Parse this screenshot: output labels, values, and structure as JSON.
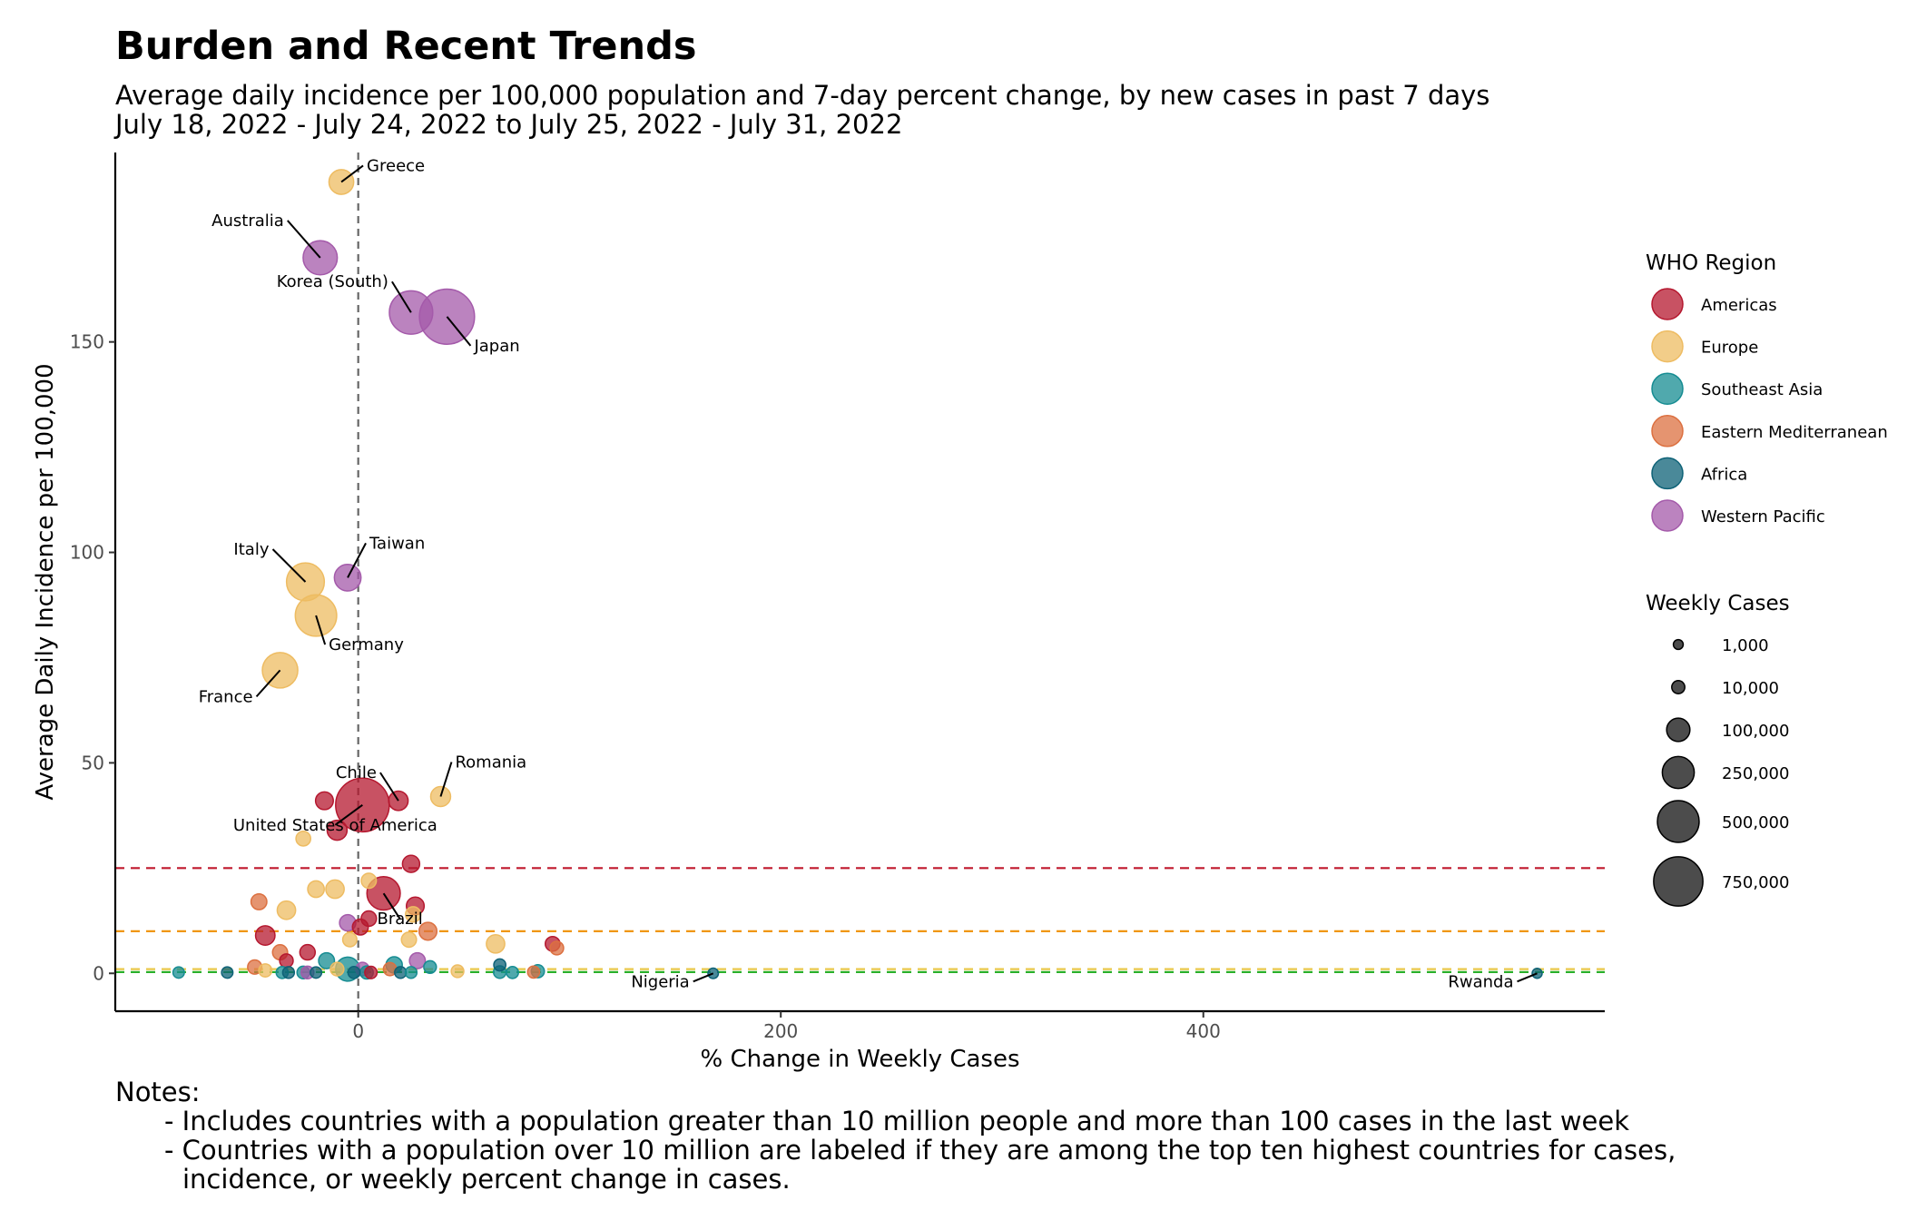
{
  "title": "Burden and Recent Trends",
  "subtitle_line1": "Average daily incidence per 100,000 population and 7-day percent change, by new cases in past 7 days",
  "subtitle_line2": "July 18, 2022 - July 24, 2022 to July 25, 2022 - July 31, 2022",
  "notes_header": "Notes:",
  "notes": [
    "- Includes countries with a population greater than 10 million people and more than 100 cases in the last week",
    "- Countries with a population over 10 million are labeled if they are among the top ten highest countries for cases,",
    "incidence, or weekly percent change in cases."
  ],
  "chart_data": {
    "type": "scatter",
    "xlabel": "% Change in Weekly Cases",
    "ylabel": "Average Daily Incidence per 100,000",
    "xlim": [
      -115,
      590
    ],
    "ylim": [
      -9,
      195
    ],
    "x_ticks": [
      0,
      200,
      400
    ],
    "y_ticks": [
      0,
      50,
      100,
      150
    ],
    "tick_labels_x": [
      "0",
      "200",
      "400"
    ],
    "tick_labels_y": [
      "0",
      "50",
      "100",
      "150"
    ],
    "grid": false,
    "legend_placement": "right",
    "vertical_reference_x": 0,
    "threshold_lines": [
      {
        "y": 25,
        "color": "#c0182d"
      },
      {
        "y": 10,
        "color": "#f0960c"
      },
      {
        "y": 1,
        "color": "#e8c84a"
      },
      {
        "y": 0.3,
        "color": "#2ab02a"
      }
    ],
    "color_legend": {
      "title": "WHO Region",
      "entries": [
        {
          "name": "Americas",
          "color": "#b5182f"
        },
        {
          "name": "Europe",
          "color": "#eebc62"
        },
        {
          "name": "Southeast Asia",
          "color": "#168c92"
        },
        {
          "name": "Eastern Mediterranean",
          "color": "#dc7040"
        },
        {
          "name": "Africa",
          "color": "#0e6277"
        },
        {
          "name": "Western Pacific",
          "color": "#a45aaa"
        }
      ]
    },
    "size_legend": {
      "title": "Weekly Cases",
      "entries": [
        {
          "label": "1,000",
          "value": 1000
        },
        {
          "label": "10,000",
          "value": 10000
        },
        {
          "label": "100,000",
          "value": 100000
        },
        {
          "label": "250,000",
          "value": 250000
        },
        {
          "label": "500,000",
          "value": 500000
        },
        {
          "label": "750,000",
          "value": 750000
        }
      ]
    },
    "labels": {
      "Greece": "Greece",
      "Australia": "Australia",
      "Korea (South)": "Korea (South)",
      "Japan": "Japan",
      "Italy": "Italy",
      "Taiwan": "Taiwan",
      "Germany": "Germany",
      "France": "France",
      "Chile": "Chile",
      "Romania": "Romania",
      "United States of America": "United States of America",
      "Brazil": "Brazil",
      "Nigeria": "Nigeria",
      "Rwanda": "Rwanda"
    },
    "points": [
      {
        "label": "Greece",
        "x": -8,
        "y": 188,
        "region": "Europe",
        "cases": 120000
      },
      {
        "label": "Australia",
        "x": -18,
        "y": 170,
        "region": "Western Pacific",
        "cases": 300000
      },
      {
        "label": "Korea (South)",
        "x": 25,
        "y": 157,
        "region": "Western Pacific",
        "cases": 550000
      },
      {
        "label": "Japan",
        "x": 42,
        "y": 156,
        "region": "Western Pacific",
        "cases": 980000
      },
      {
        "label": "Italy",
        "x": -25,
        "y": 93,
        "region": "Europe",
        "cases": 390000
      },
      {
        "label": "Taiwan",
        "x": -5,
        "y": 94,
        "region": "Western Pacific",
        "cases": 150000
      },
      {
        "label": "Germany",
        "x": -20,
        "y": 85,
        "region": "Europe",
        "cases": 490000
      },
      {
        "label": "France",
        "x": -37,
        "y": 72,
        "region": "Europe",
        "cases": 330000
      },
      {
        "label": "Chile",
        "x": 19,
        "y": 41,
        "region": "Americas",
        "cases": 55000
      },
      {
        "label": "Romania",
        "x": 39,
        "y": 42,
        "region": "Europe",
        "cases": 60000
      },
      {
        "label": "United States of America",
        "x": 2,
        "y": 40,
        "region": "Americas",
        "cases": 920000
      },
      {
        "label": "Brazil",
        "x": 12,
        "y": 19,
        "region": "Americas",
        "cases": 280000
      },
      {
        "label": "Nigeria",
        "x": 168,
        "y": 0,
        "region": "Africa",
        "cases": 2000
      },
      {
        "label": "Rwanda",
        "x": 558,
        "y": 0,
        "region": "Africa",
        "cases": 1200
      },
      {
        "label": "",
        "x": -16,
        "y": 41,
        "region": "Americas",
        "cases": 40000
      },
      {
        "label": "",
        "x": -10,
        "y": 34,
        "region": "Americas",
        "cases": 60000
      },
      {
        "label": "",
        "x": -26,
        "y": 32,
        "region": "Europe",
        "cases": 18000
      },
      {
        "label": "",
        "x": 25,
        "y": 26,
        "region": "Americas",
        "cases": 35000
      },
      {
        "label": "",
        "x": 5,
        "y": 22,
        "region": "Europe",
        "cases": 20000
      },
      {
        "label": "",
        "x": -11,
        "y": 20,
        "region": "Europe",
        "cases": 45000
      },
      {
        "label": "",
        "x": -20,
        "y": 20,
        "region": "Europe",
        "cases": 30000
      },
      {
        "label": "",
        "x": -47,
        "y": 17,
        "region": "Eastern Mediterranean",
        "cases": 25000
      },
      {
        "label": "",
        "x": 27,
        "y": 16,
        "region": "Americas",
        "cases": 40000
      },
      {
        "label": "",
        "x": -34,
        "y": 15,
        "region": "Europe",
        "cases": 45000
      },
      {
        "label": "",
        "x": 26,
        "y": 14,
        "region": "Europe",
        "cases": 22000
      },
      {
        "label": "",
        "x": 5,
        "y": 13,
        "region": "Americas",
        "cases": 22000
      },
      {
        "label": "",
        "x": 1,
        "y": 11,
        "region": "Americas",
        "cases": 25000
      },
      {
        "label": "",
        "x": -5,
        "y": 12,
        "region": "Western Pacific",
        "cases": 28000
      },
      {
        "label": "",
        "x": 33,
        "y": 10,
        "region": "Eastern Mediterranean",
        "cases": 40000
      },
      {
        "label": "",
        "x": -44,
        "y": 9,
        "region": "Americas",
        "cases": 55000
      },
      {
        "label": "",
        "x": -4,
        "y": 8,
        "region": "Europe",
        "cases": 15000
      },
      {
        "label": "",
        "x": 24,
        "y": 8,
        "region": "Europe",
        "cases": 20000
      },
      {
        "label": "",
        "x": 65,
        "y": 7,
        "region": "Europe",
        "cases": 45000
      },
      {
        "label": "",
        "x": 92,
        "y": 7,
        "region": "Americas",
        "cases": 18000
      },
      {
        "label": "",
        "x": 94,
        "y": 6,
        "region": "Eastern Mediterranean",
        "cases": 12000
      },
      {
        "label": "",
        "x": -37,
        "y": 5,
        "region": "Eastern Mediterranean",
        "cases": 20000
      },
      {
        "label": "",
        "x": -24,
        "y": 5,
        "region": "Americas",
        "cases": 22000
      },
      {
        "label": "",
        "x": -34,
        "y": 3,
        "region": "Americas",
        "cases": 12000
      },
      {
        "label": "",
        "x": -15,
        "y": 3,
        "region": "Southeast Asia",
        "cases": 25000
      },
      {
        "label": "",
        "x": 28,
        "y": 3,
        "region": "Western Pacific",
        "cases": 25000
      },
      {
        "label": "",
        "x": 17,
        "y": 2,
        "region": "Southeast Asia",
        "cases": 28000
      },
      {
        "label": "",
        "x": 67,
        "y": 2,
        "region": "Africa",
        "cases": 6000
      },
      {
        "label": "",
        "x": 34,
        "y": 1.5,
        "region": "Southeast Asia",
        "cases": 8000
      },
      {
        "label": "",
        "x": -49,
        "y": 1.5,
        "region": "Eastern Mediterranean",
        "cases": 15000
      },
      {
        "label": "",
        "x": -5,
        "y": 1,
        "region": "Southeast Asia",
        "cases": 110000
      },
      {
        "label": "",
        "x": -10,
        "y": 1,
        "region": "Europe",
        "cases": 12000
      },
      {
        "label": "",
        "x": 2,
        "y": 1,
        "region": "Western Pacific",
        "cases": 12000
      },
      {
        "label": "",
        "x": -44,
        "y": 0.7,
        "region": "Europe",
        "cases": 10000
      },
      {
        "label": "",
        "x": 15,
        "y": 1,
        "region": "Eastern Mediterranean",
        "cases": 10000
      },
      {
        "label": "",
        "x": 47,
        "y": 0.5,
        "region": "Europe",
        "cases": 8000
      },
      {
        "label": "",
        "x": 85,
        "y": 0.5,
        "region": "Southeast Asia",
        "cases": 10000
      },
      {
        "label": "",
        "x": 83,
        "y": 0.3,
        "region": "Eastern Mediterranean",
        "cases": 6000
      },
      {
        "label": "",
        "x": 67,
        "y": 0.3,
        "region": "Southeast Asia",
        "cases": 8000
      },
      {
        "label": "",
        "x": 73,
        "y": 0.2,
        "region": "Southeast Asia",
        "cases": 6000
      },
      {
        "label": "",
        "x": -85,
        "y": 0.2,
        "region": "Southeast Asia",
        "cases": 4000
      },
      {
        "label": "",
        "x": -62,
        "y": 0.2,
        "region": "Africa",
        "cases": 4000
      },
      {
        "label": "",
        "x": -36,
        "y": 0.2,
        "region": "Southeast Asia",
        "cases": 6000
      },
      {
        "label": "",
        "x": -33,
        "y": 0.2,
        "region": "Africa",
        "cases": 5000
      },
      {
        "label": "",
        "x": -26,
        "y": 0.2,
        "region": "Southeast Asia",
        "cases": 8000
      },
      {
        "label": "",
        "x": -24,
        "y": 0.2,
        "region": "Western Pacific",
        "cases": 8000
      },
      {
        "label": "",
        "x": -20,
        "y": 0.2,
        "region": "Africa",
        "cases": 4000
      },
      {
        "label": "",
        "x": -2,
        "y": 0.2,
        "region": "Africa",
        "cases": 6000
      },
      {
        "label": "",
        "x": 4,
        "y": 0.2,
        "region": "Southeast Asia",
        "cases": 10000
      },
      {
        "label": "",
        "x": 6,
        "y": 0.2,
        "region": "Americas",
        "cases": 7000
      },
      {
        "label": "",
        "x": 20,
        "y": 0.2,
        "region": "Africa",
        "cases": 5000
      },
      {
        "label": "",
        "x": 25,
        "y": 0.2,
        "region": "Southeast Asia",
        "cases": 5000
      }
    ]
  }
}
